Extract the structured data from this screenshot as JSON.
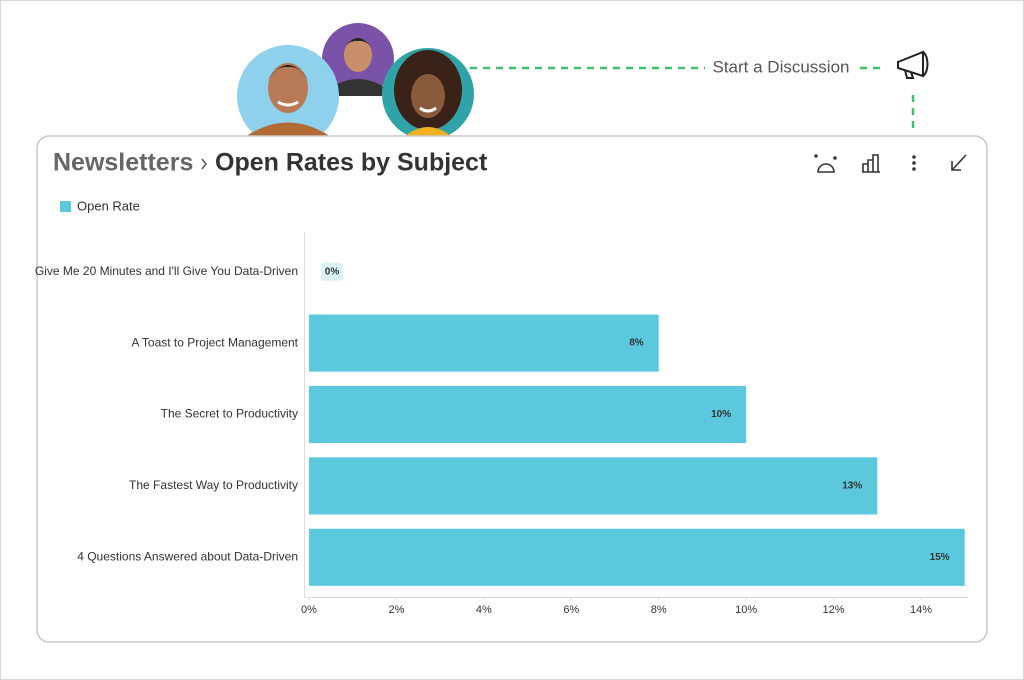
{
  "breadcrumb": "Newsletters",
  "discussion_label": "Start a Discussion",
  "chart_data": {
    "type": "bar",
    "orientation": "horizontal",
    "title": "Open Rates by Subject",
    "categories": [
      "Give Me 20 Minutes and I'll Give You Data-Driven",
      "A Toast to Project Management",
      "The Secret to Productivity",
      "The Fastest Way to Productivity",
      "4 Questions Answered about Data-Driven"
    ],
    "series": [
      {
        "name": "Open Rate",
        "color": "#5bc8de",
        "values": [
          0,
          8,
          10,
          13,
          15
        ],
        "value_labels": [
          "0%",
          "8%",
          "10%",
          "13%",
          "15%"
        ]
      }
    ],
    "xlim": [
      0,
      15
    ],
    "xticks": [
      {
        "value": 0,
        "label": "0%"
      },
      {
        "value": 2,
        "label": "2%"
      },
      {
        "value": 4,
        "label": "4%"
      },
      {
        "value": 6,
        "label": "6%"
      },
      {
        "value": 8,
        "label": "8%"
      },
      {
        "value": 10,
        "label": "10%"
      },
      {
        "value": 12,
        "label": "12%"
      },
      {
        "value": 14,
        "label": "14%"
      }
    ],
    "legend": "top-left"
  }
}
